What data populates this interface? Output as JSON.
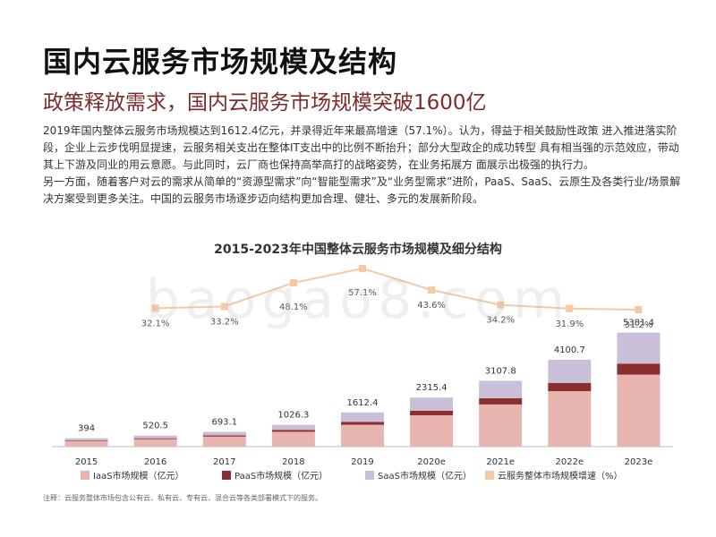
{
  "header": {
    "title": "国内云服务市场规模及结构",
    "subtitle": "政策释放需求，国内云服务市场规模突破1600亿"
  },
  "paragraphs": [
    "2019年国内整体云服务市场规模达到1612.4亿元，并录得近年来最高增速（57.1%）。认为，得益于相关鼓励性政策 进入推进落实阶段，企业上云步伐明显提速，云服务相关支出在整体IT支出中的比例不断抬升；部分大型政企的成功转型 具有相当强的示范效应，带动其上下游及同业的用云意愿。与此同时，云厂商也保持高举高打的战略姿势，在业务拓展方 面展示出极强的执行力。",
    "另一方面，随着客户对云的需求从简单的“资源型需求”向“智能型需求”及“业务型需求”进阶，PaaS、SaaS、云原生及各类行业/场景解决方案受到更多关注。中国的云服务市场逐步迈向结构更加合理、健壮、多元的发展新阶段。"
  ],
  "watermark": "baogao8.com",
  "footnote": "注释：云服务整体市场包含公有云、私有云、专有云、混合云等各类部署模式下的服务。",
  "chart_data": {
    "type": "bar",
    "title": "2015-2023年中国整体云服务市场规模及细分结构",
    "categories": [
      "2015",
      "2016",
      "2017",
      "2018",
      "2019",
      "2020e",
      "2021e",
      "2022e",
      "2023e"
    ],
    "totals": [
      "394",
      "520.5",
      "693.1",
      "1026.3",
      "1612.4",
      "2315.4",
      "3107.8",
      "4100.7",
      "5381.4"
    ],
    "series": [
      {
        "name": "IaaS市场规模（亿元）",
        "color": "#e8b4b0",
        "values": [
          270,
          355,
          475,
          700,
          1030,
          1480,
          1990,
          2620,
          3400
        ]
      },
      {
        "name": "PaaS市场规模（亿元）",
        "color": "#8b2e2e",
        "values": [
          30,
          40,
          55,
          85,
          140,
          210,
          290,
          390,
          520
        ]
      },
      {
        "name": "SaaS市场规模（亿元）",
        "color": "#c9bfd9",
        "values": [
          94,
          125.5,
          163.1,
          241.3,
          442.4,
          625.4,
          827.8,
          1090.7,
          1461.4
        ]
      }
    ],
    "growth": {
      "name": "云服务整体市场规模增速（%）",
      "color": "#f5c9a3",
      "values": [
        32.1,
        33.2,
        48.1,
        57.1,
        43.6,
        34.2,
        31.9,
        31.2
      ],
      "labels": [
        "32.1%",
        "33.2%",
        "48.1%",
        "57.1%",
        "43.6%",
        "34.2%",
        "31.9%",
        "31.2%"
      ],
      "range": [
        0,
        60
      ]
    },
    "ylim": [
      0,
      6000
    ]
  }
}
